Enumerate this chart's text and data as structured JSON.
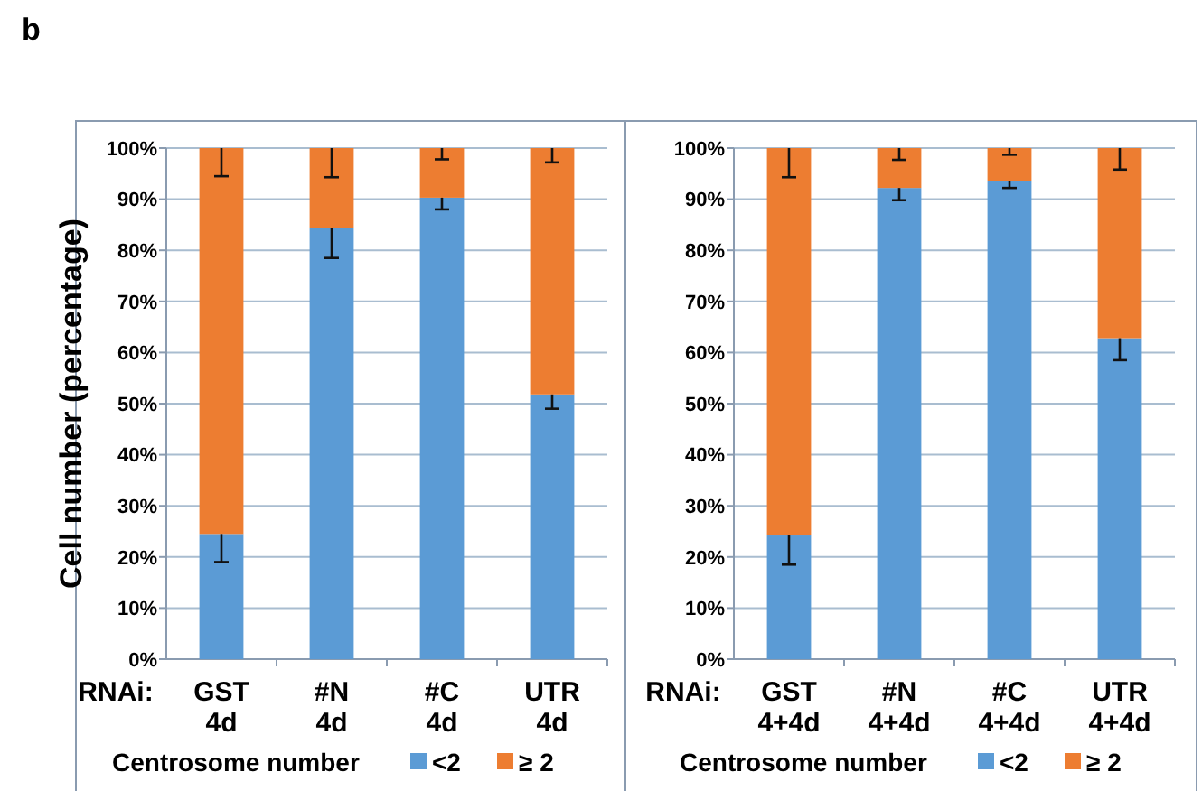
{
  "chart_data": [
    {
      "type": "bar",
      "stacked": true,
      "ylabel": "Cell number (percentage)",
      "annotations": [
        "b",
        "RNAi:"
      ],
      "legend_title": "Centrosome number",
      "legend": "bottom",
      "grid": "y",
      "categories": [
        "GST 4d",
        "#N 4d",
        "#C 4d",
        "UTR 4d"
      ],
      "ylim": [
        0,
        100
      ],
      "yticks": [
        {
          "value": 0,
          "label": "0%"
        },
        {
          "value": 10,
          "label": "10%"
        },
        {
          "value": 20,
          "label": "20%"
        },
        {
          "value": 30,
          "label": "30%"
        },
        {
          "value": 40,
          "label": "40%"
        },
        {
          "value": 50,
          "label": "50%"
        },
        {
          "value": 60,
          "label": "60%"
        },
        {
          "value": 70,
          "label": "70%"
        },
        {
          "value": 80,
          "label": "80%"
        },
        {
          "value": 90,
          "label": "90%"
        },
        {
          "value": 100,
          "label": "100%"
        }
      ],
      "series": [
        {
          "name": "<2",
          "color": "#5b9bd5",
          "values": [
            24.5,
            84.3,
            90.3,
            51.8
          ],
          "errors": [
            [
              19,
              24.5
            ],
            [
              78.5,
              84.3
            ],
            [
              88,
              90.3
            ],
            [
              49,
              51.8
            ]
          ]
        },
        {
          "name": "≥ 2",
          "color": "#ed7d31",
          "values": [
            75.5,
            15.7,
            9.7,
            48.2
          ],
          "errors": [
            [
              94.5,
              100
            ],
            [
              94.3,
              100
            ],
            [
              97.8,
              100
            ],
            [
              97.2,
              100
            ]
          ]
        }
      ]
    },
    {
      "type": "bar",
      "stacked": true,
      "annotations": [
        "RNAi:"
      ],
      "legend_title": "Centrosome number",
      "legend": "bottom",
      "grid": "y",
      "categories": [
        "GST 4+4d",
        "#N 4+4d",
        "#C 4+4d",
        "UTR 4+4d"
      ],
      "ylim": [
        0,
        100
      ],
      "yticks": [
        {
          "value": 0,
          "label": "0%"
        },
        {
          "value": 10,
          "label": "10%"
        },
        {
          "value": 20,
          "label": "20%"
        },
        {
          "value": 30,
          "label": "30%"
        },
        {
          "value": 40,
          "label": "40%"
        },
        {
          "value": 50,
          "label": "50%"
        },
        {
          "value": 60,
          "label": "60%"
        },
        {
          "value": 70,
          "label": "70%"
        },
        {
          "value": 80,
          "label": "80%"
        },
        {
          "value": 90,
          "label": "90%"
        },
        {
          "value": 100,
          "label": "100%"
        }
      ],
      "series": [
        {
          "name": "<2",
          "color": "#5b9bd5",
          "values": [
            24.2,
            92.2,
            93.5,
            62.8
          ],
          "errors": [
            [
              18.5,
              24.2
            ],
            [
              89.8,
              92.2
            ],
            [
              92.2,
              93.5
            ],
            [
              58.5,
              62.8
            ]
          ]
        },
        {
          "name": "≥ 2",
          "color": "#ed7d31",
          "values": [
            75.8,
            7.8,
            6.5,
            37.2
          ],
          "errors": [
            [
              94.3,
              100
            ],
            [
              97.7,
              100
            ],
            [
              98.7,
              100
            ],
            [
              95.8,
              100
            ]
          ]
        }
      ]
    }
  ]
}
